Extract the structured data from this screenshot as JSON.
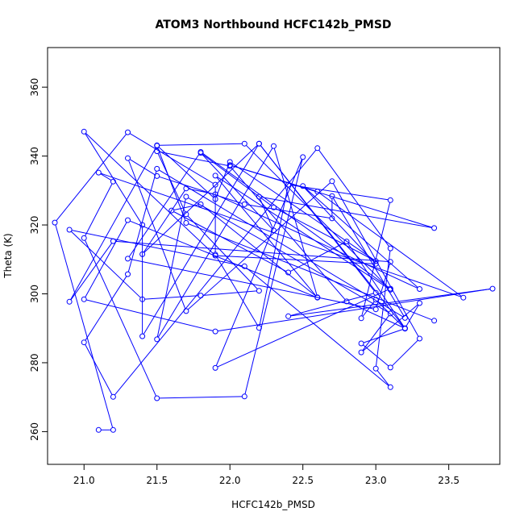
{
  "chart_data": {
    "type": "line",
    "title": "ATOM3 Northbound HCFC142b_PMSD",
    "xlabel": "HCFC142b_PMSD",
    "ylabel": "Theta (K)",
    "xlim": [
      20.75,
      23.85
    ],
    "ylim": [
      250.5,
      371.5
    ],
    "x_ticks": [
      "21.0",
      "21.5",
      "22.0",
      "22.5",
      "23.0",
      "23.5"
    ],
    "y_ticks": [
      "260",
      "280",
      "300",
      "320",
      "340",
      "360"
    ],
    "grid": false,
    "legend": "none",
    "color": "#0000ff",
    "series": [
      {
        "x": [
          21.1,
          21.2,
          20.8,
          21.3,
          21.9,
          21.9,
          22.2,
          22.4,
          23.1,
          22.9,
          23.0,
          23.2,
          22.9,
          23.1,
          23.3,
          22.7,
          21.7,
          21.3,
          21.5,
          22.1,
          22.7,
          22.7,
          23.2,
          21.5,
          21.3,
          21.0,
          21.2,
          22.6,
          23.1,
          23.0,
          23.1,
          22.1,
          20.9,
          21.4,
          21.8,
          22.2,
          21.7,
          21.5,
          22.0,
          22.8,
          23.2,
          23.3,
          22.9,
          23.1,
          21.7,
          21.5,
          22.3,
          22.6,
          21.8,
          21.6,
          22.4,
          22.8,
          23.2,
          22.2,
          21.4,
          21.4,
          21.0,
          21.9,
          23.0,
          22.5,
          23.3,
          21.9,
          21.7,
          21.4,
          22.2,
          23.0,
          22.4,
          23.8,
          21.9,
          21.0,
          21.3,
          22.6,
          21.9,
          23.1,
          22.1,
          21.5,
          21.9,
          22.0,
          23.0,
          22.3,
          21.8,
          22.3,
          22.2,
          23.4,
          22.0,
          22.6,
          23.6,
          21.1,
          21.2,
          21.0,
          21.5,
          22.1,
          22.5,
          21.9,
          23.1,
          21.8,
          21.3,
          23.0,
          23.1,
          21.2,
          20.9,
          21.5,
          21.7,
          23.4
        ],
        "y": [
          260.5,
          260.5,
          320.7,
          346.9,
          331.7,
          311.4,
          290.1,
          331.7,
          327.2,
          292.9,
          298.3,
          289.9,
          285.6,
          278.6,
          287.0,
          332.7,
          295.0,
          339.4,
          334.2,
          326.0,
          321.9,
          328.4,
          293.0,
          336.3,
          305.7,
          285.9,
          270.1,
          342.3,
          313.2,
          278.3,
          272.9,
          308.0,
          318.6,
          298.4,
          299.5,
          300.9,
          323.1,
          341.4,
          337.1,
          297.8,
          290.0,
          297.3,
          283.0,
          294.3,
          328.2,
          286.8,
          342.9,
          299.0,
          326.0,
          324.2,
          306.2,
          315.2,
          290.0,
          343.6,
          287.7,
          320.0,
          347.1,
          311.1,
          308.7,
          331.3,
          301.4,
          328.9,
          330.6,
          311.5,
          343.6,
          300.3,
          293.5,
          301.5,
          289.1,
          298.4,
          321.4,
          298.9,
          334.3,
          301.2,
          343.6,
          343.1,
          327.5,
          338.3,
          309.5,
          325.1,
          340.9,
          318.4,
          328.2,
          319.1,
          337.4,
          329.7,
          298.9,
          335.2,
          332.6,
          316.2,
          269.7,
          270.2,
          339.7,
          278.5,
          301.5,
          341.2,
          310.2,
          295.5,
          309.3,
          315.3,
          297.7,
          343.0,
          320.6,
          292.2
        ]
      }
    ]
  }
}
